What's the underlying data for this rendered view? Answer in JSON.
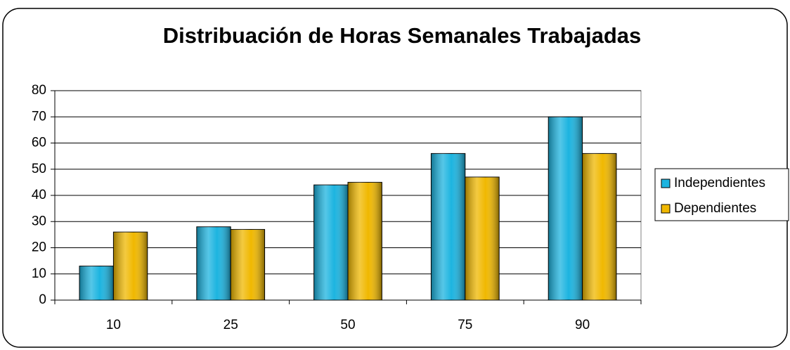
{
  "chart_data": {
    "type": "bar",
    "title": "Distribuación de Horas Semanales Trabajadas",
    "categories": [
      "10",
      "25",
      "50",
      "75",
      "90"
    ],
    "series": [
      {
        "name": "Independientes",
        "color": "#1cb4e0",
        "values": [
          13,
          28,
          44,
          56,
          70
        ]
      },
      {
        "name": "Dependientes",
        "color": "#f0b800",
        "values": [
          26,
          27,
          45,
          47,
          56
        ]
      }
    ],
    "ylim": [
      0,
      80
    ],
    "yticks": [
      0,
      10,
      20,
      30,
      40,
      50,
      60,
      70,
      80
    ],
    "grid": true,
    "legend": "right"
  }
}
